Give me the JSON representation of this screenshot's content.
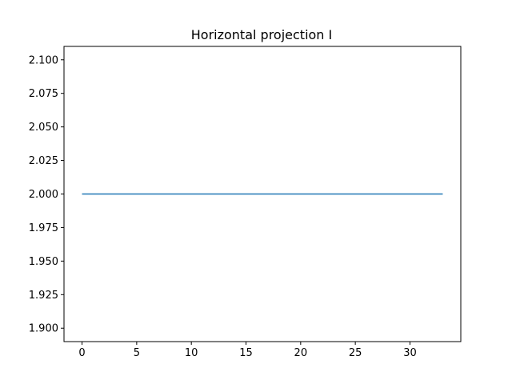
{
  "chart_data": {
    "type": "line",
    "title": "Horizontal projection I",
    "xlabel": "",
    "ylabel": "",
    "xlim": [
      -1.65,
      34.65
    ],
    "ylim": [
      1.89,
      2.11
    ],
    "xticks": [
      0,
      5,
      10,
      15,
      20,
      25,
      30
    ],
    "xtick_labels": [
      "0",
      "5",
      "10",
      "15",
      "20",
      "25",
      "30"
    ],
    "yticks": [
      1.9,
      1.925,
      1.95,
      1.975,
      2.0,
      2.025,
      2.05,
      2.075,
      2.1
    ],
    "ytick_labels": [
      "1.900",
      "1.925",
      "1.950",
      "1.975",
      "2.000",
      "2.025",
      "2.050",
      "2.075",
      "2.100"
    ],
    "grid": false,
    "series": [
      {
        "color": "#1f77b4",
        "x": [
          0,
          33
        ],
        "y": [
          2.0,
          2.0
        ]
      }
    ]
  }
}
